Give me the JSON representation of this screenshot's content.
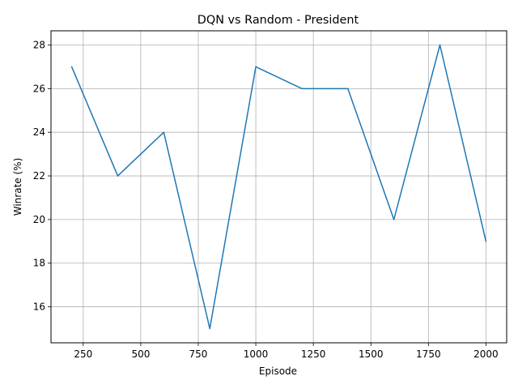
{
  "chart_data": {
    "type": "line",
    "title": "DQN vs Random - President",
    "xlabel": "Episode",
    "ylabel": "Winrate (%)",
    "x": [
      200,
      400,
      600,
      800,
      1000,
      1200,
      1400,
      1600,
      1800,
      2000
    ],
    "series": [
      {
        "values": [
          27,
          22,
          24,
          15,
          27,
          26,
          26,
          20,
          28,
          19
        ],
        "color": "#1f77b4"
      }
    ],
    "xticks": [
      250,
      500,
      750,
      1000,
      1250,
      1500,
      1750,
      2000
    ],
    "yticks": [
      16,
      18,
      20,
      22,
      24,
      26,
      28
    ],
    "xlim": [
      110,
      2090
    ],
    "ylim": [
      14.35,
      28.65
    ],
    "grid": true,
    "grid_color": "#b0b0b0"
  }
}
